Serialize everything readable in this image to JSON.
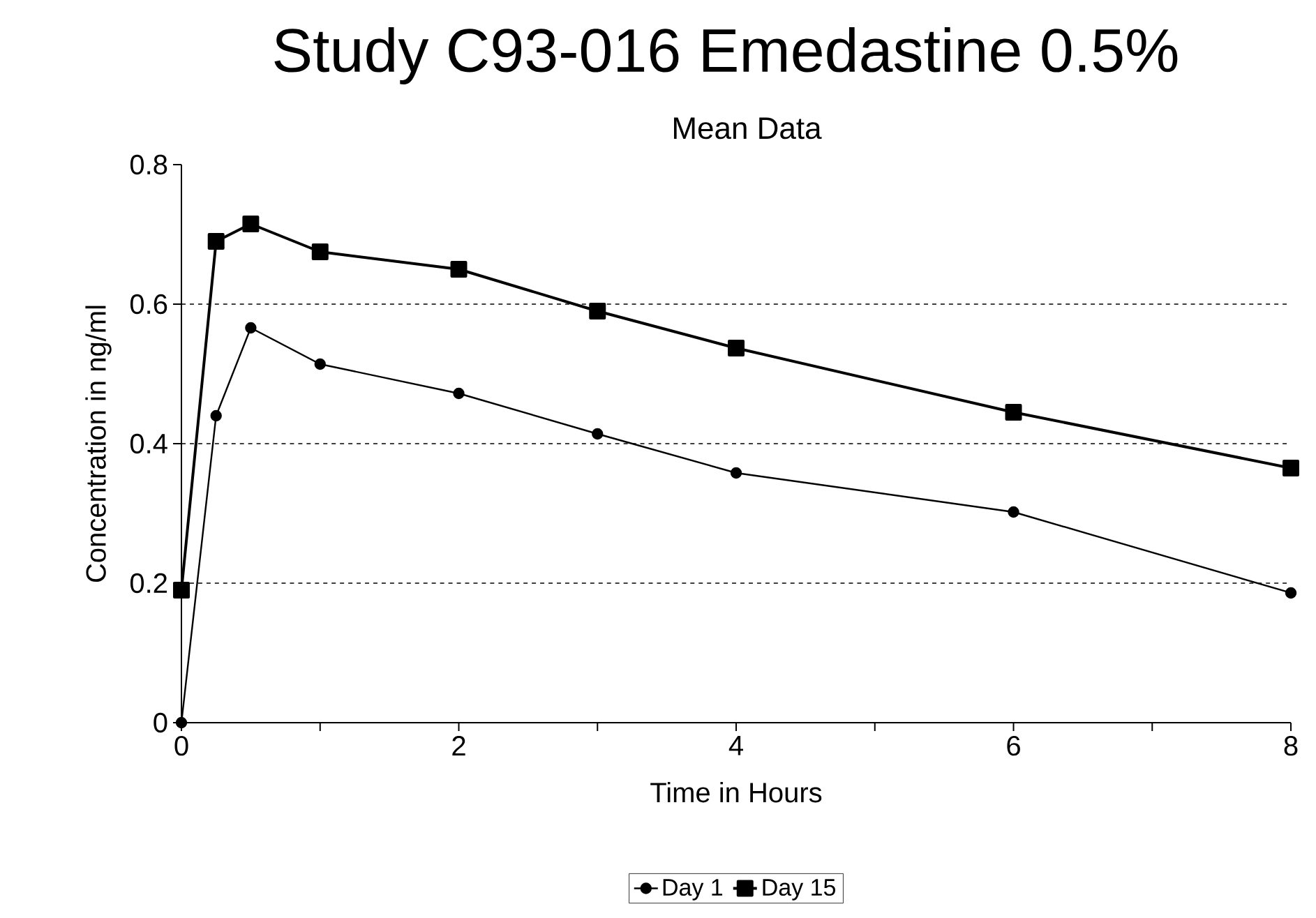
{
  "chart_data": {
    "type": "line",
    "title": "Study C93-016 Emedastine 0.5%",
    "subtitle": "Mean Data",
    "xlabel": "Time in Hours",
    "ylabel": "Concentration in ng/ml",
    "xlim": [
      0,
      8
    ],
    "ylim": [
      0,
      0.8
    ],
    "xticks": [
      0,
      {
        "value": 1,
        "label": null
      },
      2,
      {
        "value": 3,
        "label": null
      },
      4,
      {
        "value": 5,
        "label": null
      },
      6,
      {
        "value": 7,
        "label": null
      },
      8
    ],
    "yticks": [
      0,
      0.2,
      0.4,
      0.6,
      0.8
    ],
    "grid": "y",
    "legend": "bottom",
    "line_style": "solid",
    "series": [
      {
        "name": "Day 1",
        "color": "#000000",
        "marker": "circle",
        "x": [
          0,
          0.25,
          0.5,
          1,
          2,
          3,
          4,
          6,
          8
        ],
        "values": [
          0,
          0.44,
          0.566,
          0.514,
          0.472,
          0.414,
          0.358,
          0.302,
          0.186
        ]
      },
      {
        "name": "Day 15",
        "color": "#000000",
        "marker": "square",
        "x": [
          0,
          0.25,
          0.5,
          1,
          2,
          3,
          4,
          6,
          8
        ],
        "values": [
          0.19,
          0.69,
          0.715,
          0.675,
          0.65,
          0.59,
          0.537,
          0.445,
          0.365
        ]
      }
    ]
  }
}
